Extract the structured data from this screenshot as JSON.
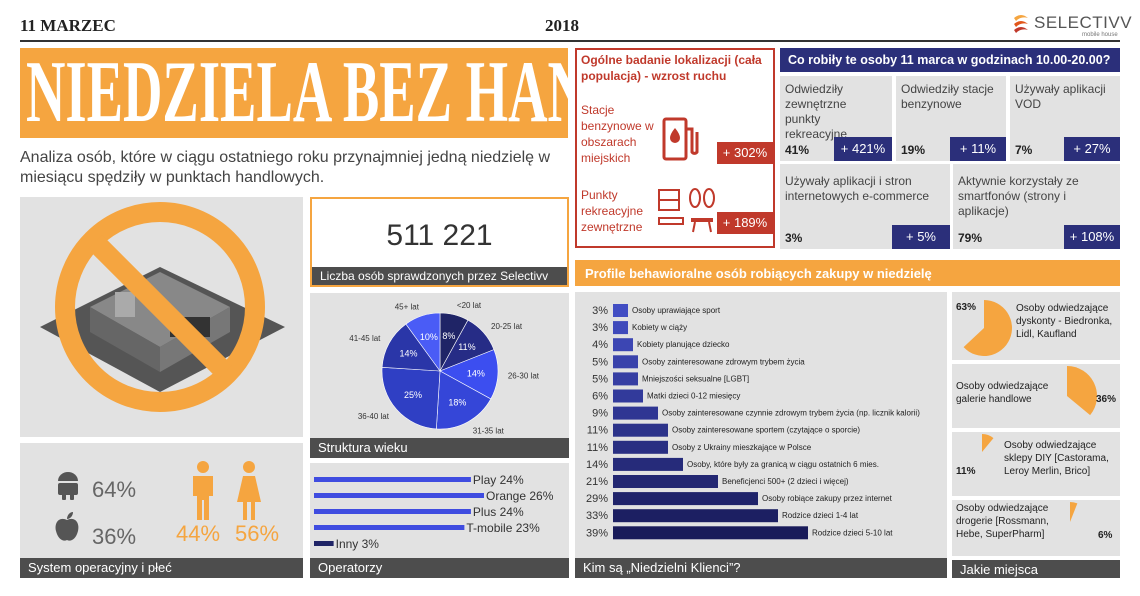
{
  "header": {
    "date": "11 MARZEC",
    "year": "2018",
    "brand": "SELECTIVV",
    "brand_sub": "mobile house"
  },
  "title": "NIEDZIELA BEZ HANDLU",
  "intro": "Analiza osób, które w ciągu ostatniego roku przynajmniej jedną niedzielę w miesiącu spędziły w punktach handlowych.",
  "counter": {
    "value": "511 221",
    "caption": "Liczba osób sprawdzonych przez Selectivv"
  },
  "os_gender": {
    "android_pct": "64%",
    "apple_pct": "36%",
    "male_pct": "44%",
    "female_pct": "56%",
    "caption": "System operacyjny i płeć"
  },
  "age": {
    "caption": "Struktura wieku",
    "slices": [
      {
        "label": "<20 lat",
        "value": 8,
        "text": "8%",
        "color": "#1f2466"
      },
      {
        "label": "20-25 lat",
        "value": 11,
        "text": "11%",
        "color": "#262c86"
      },
      {
        "label": "26-30 lat",
        "value": 14,
        "text": "14%",
        "color": "#3c4ef0"
      },
      {
        "label": "31-35 lat",
        "value": 18,
        "text": "18%",
        "color": "#3546d8"
      },
      {
        "label": "36-40 lat",
        "value": 25,
        "text": "25%",
        "color": "#2f3fc4"
      },
      {
        "label": "41-45 lat",
        "value": 14,
        "text": "14%",
        "color": "#2a36a8"
      },
      {
        "label": "45+ lat",
        "value": 10,
        "text": "10%",
        "color": "#4a5cf6"
      }
    ]
  },
  "operators": {
    "caption": "Operatorzy",
    "items": [
      {
        "label": "Play 24%",
        "value": 24
      },
      {
        "label": "Orange 26%",
        "value": 26
      },
      {
        "label": "Plus 24%",
        "value": 24
      },
      {
        "label": "T-mobile 23%",
        "value": 23
      },
      {
        "label": "Inny 3%",
        "value": 3
      }
    ]
  },
  "location": {
    "title": "Ogólne badanie lokalizacji (cała populacja) - wzrost ruchu",
    "rows": [
      {
        "label": "Stacje benzynowe w obszarach miejskich",
        "value": "+ 302%"
      },
      {
        "label": "Punkty rekreacyjne zewnętrzne",
        "value": "+ 189%"
      }
    ]
  },
  "march": {
    "title": "Co robiły te osoby 11 marca w godzinach 10.00-20.00?",
    "cells": [
      {
        "label": "Odwiedziły zewnętrzne punkty rekreacyjne",
        "pct": "41%",
        "growth": "+ 421%"
      },
      {
        "label": "Odwiedziły stacje benzynowe",
        "pct": "19%",
        "growth": "+ 11%"
      },
      {
        "label": "Używały aplikacji VOD",
        "pct": "7%",
        "growth": "+ 27%"
      },
      {
        "label": "Używały aplikacji i stron internetowych e-commerce",
        "pct": "3%",
        "growth": "+ 5%"
      },
      {
        "label": "Aktywnie korzystały ze smartfonów (strony i aplikacje)",
        "pct": "79%",
        "growth": "+ 108%"
      }
    ]
  },
  "profiles": {
    "title": "Profile behawioralne osób robiących zakupy w niedzielę",
    "caption": "Kim są „Niedzielni Klienci”?",
    "items": [
      {
        "pct": "3%",
        "value": 3,
        "label": "Osoby uprawiające sport"
      },
      {
        "pct": "3%",
        "value": 3,
        "label": "Kobiety w ciąży"
      },
      {
        "pct": "4%",
        "value": 4,
        "label": "Kobiety planujące dziecko"
      },
      {
        "pct": "5%",
        "value": 5,
        "label": "Osoby zainteresowane zdrowym trybem życia"
      },
      {
        "pct": "5%",
        "value": 5,
        "label": "Mniejszości seksualne [LGBT]"
      },
      {
        "pct": "6%",
        "value": 6,
        "label": "Matki dzieci 0-12 miesięcy"
      },
      {
        "pct": "9%",
        "value": 9,
        "label": "Osoby zainteresowane czynnie zdrowym trybem życia (np. licznik kalorii)"
      },
      {
        "pct": "11%",
        "value": 11,
        "label": "Osoby zainteresowane sportem (czytające o sporcie)"
      },
      {
        "pct": "11%",
        "value": 11,
        "label": "Osoby z Ukrainy mieszkające w Polsce"
      },
      {
        "pct": "14%",
        "value": 14,
        "label": "Osoby, które były za granicą w ciągu ostatnich 6 mies."
      },
      {
        "pct": "21%",
        "value": 21,
        "label": "Beneficjenci 500+ (2 dzieci i więcej)"
      },
      {
        "pct": "29%",
        "value": 29,
        "label": "Osoby robiące zakupy przez internet"
      },
      {
        "pct": "33%",
        "value": 33,
        "label": "Rodzice dzieci 1-4 lat"
      },
      {
        "pct": "39%",
        "value": 39,
        "label": "Rodzice dzieci 5-10 lat"
      }
    ]
  },
  "places": {
    "caption": "Jakie miejsca odwiedzają?",
    "items": [
      {
        "label": "Osoby odwiedzające dyskonty - Biedronka, Lidl, Kaufland",
        "pct": "63%",
        "value": 63
      },
      {
        "label": "Osoby odwiedzające galerie handlowe",
        "pct": "36%",
        "value": 36
      },
      {
        "label": "Osoby odwiedzające sklepy DIY [Castorama, Leroy Merlin, Brico]",
        "pct": "11%",
        "value": 11
      },
      {
        "label": "Osoby odwiedzające drogerie [Rossmann, Hebe, SuperPharm]",
        "pct": "6%",
        "value": 6
      }
    ]
  },
  "chart_data": [
    {
      "type": "pie",
      "title": "Struktura wieku",
      "categories": [
        "<20 lat",
        "20-25 lat",
        "26-30 lat",
        "31-35 lat",
        "36-40 lat",
        "41-45 lat",
        "45+ lat"
      ],
      "values": [
        8,
        11,
        14,
        18,
        25,
        14,
        10
      ]
    },
    {
      "type": "bar",
      "title": "Operatorzy",
      "categories": [
        "Play",
        "Orange",
        "Plus",
        "T-mobile",
        "Inny"
      ],
      "values": [
        24,
        26,
        24,
        23,
        3
      ]
    },
    {
      "type": "bar",
      "title": "Profile behawioralne osób robiących zakupy w niedzielę",
      "categories": [
        "Osoby uprawiające sport",
        "Kobiety w ciąży",
        "Kobiety planujące dziecko",
        "Osoby zainteresowane zdrowym trybem życia",
        "Mniejszości seksualne [LGBT]",
        "Matki dzieci 0-12 miesięcy",
        "Osoby zainteresowane czynnie zdrowym trybem życia (np. licznik kalorii)",
        "Osoby zainteresowane sportem (czytające o sporcie)",
        "Osoby z Ukrainy mieszkające w Polsce",
        "Osoby, które były za granicą w ciągu ostatnich 6 mies.",
        "Beneficjenci 500+ (2 dzieci i więcej)",
        "Osoby robiące zakupy przez internet",
        "Rodzice dzieci 1-4 lat",
        "Rodzice dzieci 5-10 lat"
      ],
      "values": [
        3,
        3,
        4,
        5,
        5,
        6,
        9,
        11,
        11,
        14,
        21,
        29,
        33,
        39
      ]
    },
    {
      "type": "pie",
      "title": "Jakie miejsca odwiedzają?",
      "categories": [
        "dyskonty",
        "galerie handlowe",
        "sklepy DIY",
        "drogerie"
      ],
      "values": [
        63,
        36,
        11,
        6
      ]
    }
  ]
}
